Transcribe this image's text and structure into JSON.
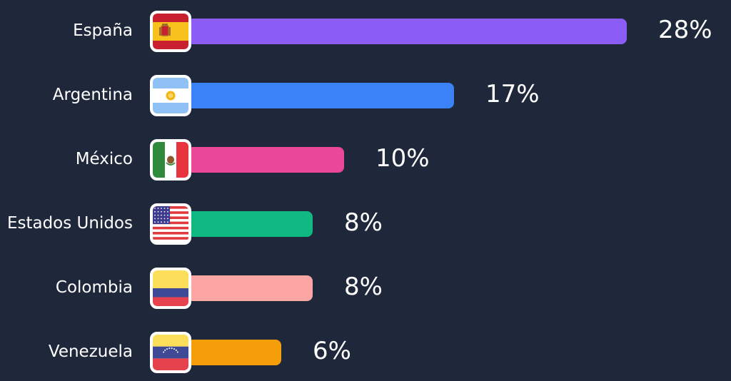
{
  "chart_data": {
    "type": "bar",
    "orientation": "horizontal",
    "categories": [
      "España",
      "Argentina",
      "México",
      "Estados Unidos",
      "Colombia",
      "Venezuela"
    ],
    "values": [
      28,
      17,
      10,
      8,
      8,
      6
    ],
    "value_labels": [
      "28%",
      "17%",
      "10%",
      "8%",
      "8%",
      "6%"
    ],
    "colors": [
      "#8b5cf6",
      "#3b82f6",
      "#ec4899",
      "#10b981",
      "#fca5a5",
      "#f59e0b"
    ],
    "flag_icons": [
      "spain-flag-icon",
      "argentina-flag-icon",
      "mexico-flag-icon",
      "usa-flag-icon",
      "colombia-flag-icon",
      "venezuela-flag-icon"
    ],
    "unit": "%",
    "xlim": [
      0,
      28
    ],
    "grid": false,
    "legend": "none"
  }
}
